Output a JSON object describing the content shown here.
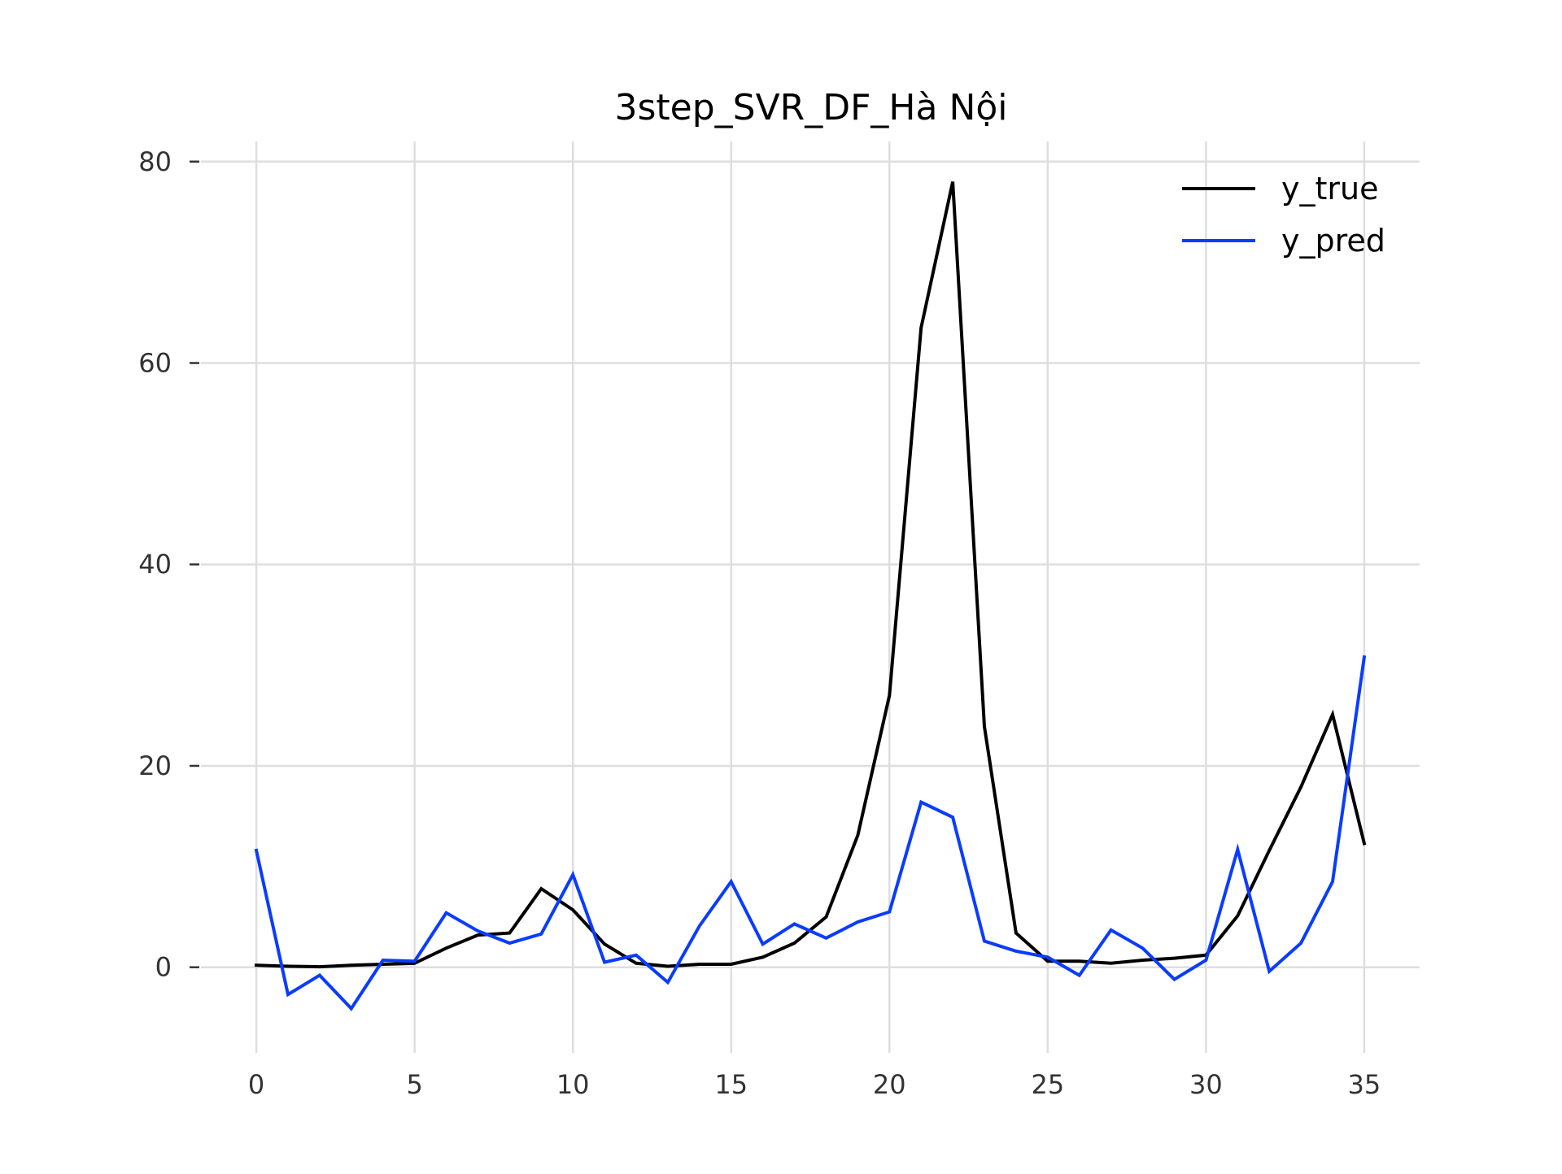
{
  "chart_data": {
    "type": "line",
    "title": "3step_SVR_DF_Hà Nội",
    "xlabel": "",
    "ylabel": "",
    "xlim": [
      -1.75,
      36.75
    ],
    "ylim": [
      -8.5,
      82
    ],
    "x_ticks": [
      0,
      5,
      10,
      15,
      20,
      25,
      30,
      35
    ],
    "y_ticks": [
      0,
      20,
      40,
      60,
      80
    ],
    "grid": true,
    "legend_position": "top-right",
    "x": [
      0,
      1,
      2,
      3,
      4,
      5,
      6,
      7,
      8,
      9,
      10,
      11,
      12,
      13,
      14,
      15,
      16,
      17,
      18,
      19,
      20,
      21,
      22,
      23,
      24,
      25,
      26,
      27,
      28,
      29,
      30,
      31,
      32,
      33,
      34,
      35
    ],
    "series": [
      {
        "name": "y_true",
        "color": "#000000",
        "values": [
          0.2,
          0.1,
          0.05,
          0.2,
          0.3,
          0.4,
          1.9,
          3.2,
          3.4,
          7.8,
          5.7,
          2.3,
          0.4,
          0.1,
          0.3,
          0.3,
          1.0,
          2.4,
          5.0,
          13.1,
          27.0,
          63.5,
          78.0,
          23.9,
          3.4,
          0.6,
          0.6,
          0.4,
          0.7,
          0.9,
          1.2,
          5.1,
          11.6,
          17.9,
          25.1,
          12.3
        ]
      },
      {
        "name": "y_pred",
        "color": "#0a3cff",
        "values": [
          11.6,
          -2.7,
          -0.8,
          -4.1,
          0.7,
          0.6,
          5.4,
          3.6,
          2.4,
          3.3,
          9.2,
          0.5,
          1.2,
          -1.5,
          4.1,
          8.5,
          2.3,
          4.3,
          2.9,
          4.5,
          5.5,
          16.4,
          14.9,
          2.6,
          1.6,
          1.0,
          -0.8,
          3.7,
          1.9,
          -1.2,
          0.7,
          11.7,
          -0.4,
          2.4,
          8.5,
          30.8
        ]
      }
    ]
  }
}
